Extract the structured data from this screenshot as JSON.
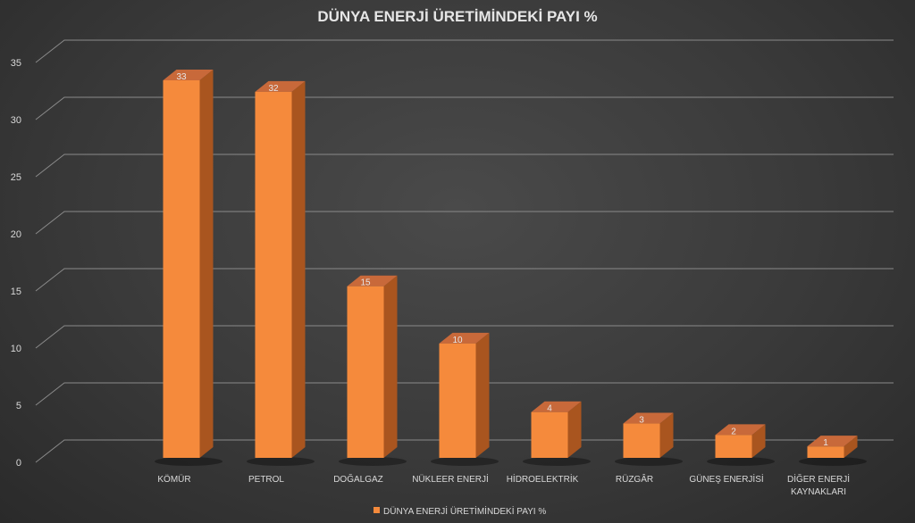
{
  "chart_data": {
    "type": "bar",
    "title": "DÜNYA ENERJİ ÜRETİMİNDEKİ PAYI  %",
    "categories": [
      "KÖMÜR",
      "PETROL",
      "DOĞALGAZ",
      "NÜKLEER ENERJİ",
      "HİDROELEKTRİK",
      "RÜZGÂR",
      "GÜNEŞ ENERJİSİ",
      "DİĞER ENERJİ KAYNAKLARI"
    ],
    "series": [
      {
        "name": "DÜNYA ENERJİ ÜRETİMİNDEKİ PAYI %",
        "values": [
          33,
          32,
          15,
          10,
          4,
          3,
          2,
          1
        ]
      }
    ],
    "ylim": [
      0,
      35
    ],
    "yticks": [
      "0",
      "5",
      "10",
      "15",
      "20",
      "25",
      "30",
      "35"
    ],
    "grid": true,
    "legend": "bottom",
    "colors": {
      "bar_front": "#f58a3c",
      "bar_side": "#a9551f",
      "bar_top": "#c8693a",
      "grid": "#8a8a8a",
      "text": "#d9d9d9"
    }
  }
}
